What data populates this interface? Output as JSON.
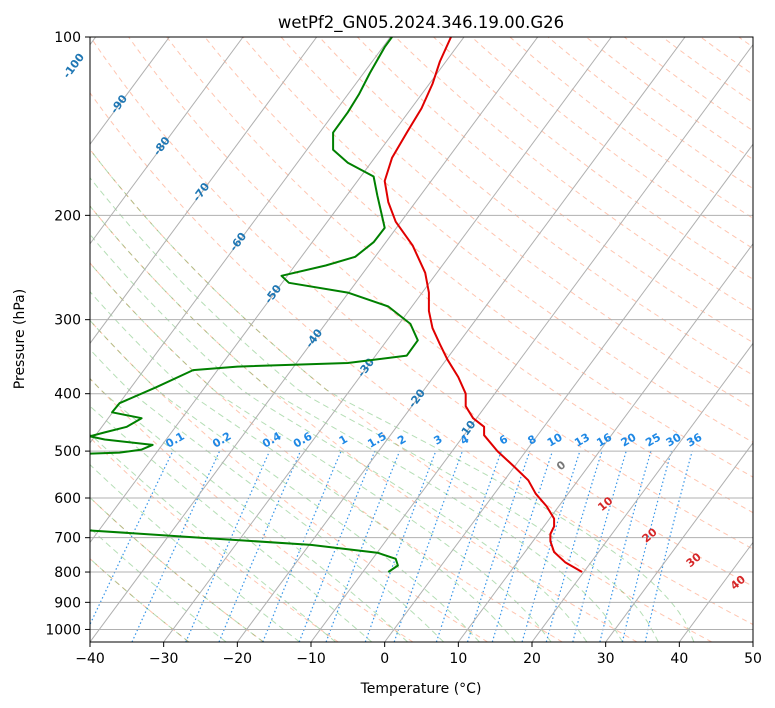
{
  "chart_data": {
    "type": "line",
    "title": "wetPf2_GN05.2024.346.19.00.G26",
    "xlabel": "Temperature (°C)",
    "ylabel": "Pressure (hPa)",
    "xlim": [
      -40,
      50
    ],
    "ylim": [
      1050,
      100
    ],
    "log_y": true,
    "grid": true,
    "x_ticks": [
      "−40",
      "−30",
      "−20",
      "−10",
      "0",
      "10",
      "20",
      "30",
      "40",
      "50"
    ],
    "y_ticks": [
      {
        "p": 100,
        "label": "100"
      },
      {
        "p": 200,
        "label": "200"
      },
      {
        "p": 300,
        "label": "300"
      },
      {
        "p": 400,
        "label": "400"
      },
      {
        "p": 500,
        "label": "500"
      },
      {
        "p": 600,
        "label": "600"
      },
      {
        "p": 700,
        "label": "700"
      },
      {
        "p": 800,
        "label": "800"
      },
      {
        "p": 900,
        "label": "900"
      },
      {
        "p": 1000,
        "label": "1000"
      }
    ],
    "series": [
      {
        "color": "#e00000",
        "points": [
          [
            26.8,
            800
          ],
          [
            24.5,
            770
          ],
          [
            23.0,
            740
          ],
          [
            22.5,
            710
          ],
          [
            22.5,
            690
          ],
          [
            23.0,
            670
          ],
          [
            23.0,
            650
          ],
          [
            22.0,
            620
          ],
          [
            20.5,
            590
          ],
          [
            19.5,
            560
          ],
          [
            17.5,
            530
          ],
          [
            15.3,
            500
          ],
          [
            13.5,
            470
          ],
          [
            13.5,
            455
          ],
          [
            12.0,
            440
          ],
          [
            11.0,
            420
          ],
          [
            11.0,
            400
          ],
          [
            10.0,
            375
          ],
          [
            8.5,
            350
          ],
          [
            7.5,
            330
          ],
          [
            6.5,
            310
          ],
          [
            6.0,
            290
          ],
          [
            6.0,
            270
          ],
          [
            5.5,
            250
          ],
          [
            3.8,
            225
          ],
          [
            1.5,
            205
          ],
          [
            0.5,
            190
          ],
          [
            0.0,
            175
          ],
          [
            1.0,
            160
          ],
          [
            3.0,
            145
          ],
          [
            5.0,
            132
          ],
          [
            6.5,
            120
          ],
          [
            7.5,
            110
          ],
          [
            9.0,
            100
          ]
        ]
      },
      {
        "color": "#008000",
        "points": [
          [
            0.5,
            800
          ],
          [
            1.8,
            780
          ],
          [
            1.5,
            760
          ],
          [
            -1.0,
            742
          ],
          [
            -10.0,
            720
          ],
          [
            -25.0,
            700
          ],
          [
            -40.5,
            680
          ],
          [
            -40.5,
            505
          ],
          [
            -36.0,
            503
          ],
          [
            -33.0,
            497
          ],
          [
            -31.5,
            488
          ],
          [
            -38.0,
            478
          ],
          [
            -40.0,
            472
          ],
          [
            -38.0,
            465
          ],
          [
            -35.0,
            455
          ],
          [
            -33.0,
            440
          ],
          [
            -37.0,
            430
          ],
          [
            -36.0,
            415
          ],
          [
            -31.0,
            390
          ],
          [
            -26.0,
            365
          ],
          [
            -20.0,
            360
          ],
          [
            -5.0,
            355
          ],
          [
            3.0,
            345
          ],
          [
            4.5,
            325
          ],
          [
            3.5,
            305
          ],
          [
            0.5,
            285
          ],
          [
            -5.0,
            270
          ],
          [
            -13.0,
            260
          ],
          [
            -14.0,
            253
          ],
          [
            -8.0,
            243
          ],
          [
            -4.0,
            235
          ],
          [
            -1.5,
            222
          ],
          [
            0.0,
            210
          ],
          [
            -0.5,
            197
          ],
          [
            -1.0,
            185
          ],
          [
            -1.5,
            172
          ],
          [
            -5.0,
            163
          ],
          [
            -7.0,
            155
          ],
          [
            -7.0,
            145
          ],
          [
            -5.0,
            134
          ],
          [
            -3.5,
            125
          ],
          [
            -2.0,
            115
          ],
          [
            0.0,
            104
          ],
          [
            1.0,
            100
          ]
        ]
      }
    ],
    "isotherm_labels": [
      "-100",
      "-90",
      "-80",
      "-70",
      "-60",
      "-50",
      "-40",
      "-30",
      "-20",
      "-10"
    ],
    "mixing_ratio_labels": [
      "0.1",
      "0.2",
      "0.4",
      "0.6",
      "1",
      "1.5",
      "2",
      "3",
      "4",
      "6",
      "8",
      "10",
      "13",
      "16",
      "20",
      "25",
      "30",
      "36"
    ],
    "moist_adiabat_labels": [
      "0",
      "10",
      "20",
      "30",
      "40"
    ],
    "colors": {
      "temperature": "#e00000",
      "dewpoint": "#008000",
      "isotherm_label": "#1f77b4",
      "mixing_ratio": "#1e88e5",
      "dry_adiabat": "#ff7f50",
      "moist_adiabat": "#2ca02c",
      "moist_label": "#d62728",
      "grid": "#b0b0b0"
    }
  }
}
